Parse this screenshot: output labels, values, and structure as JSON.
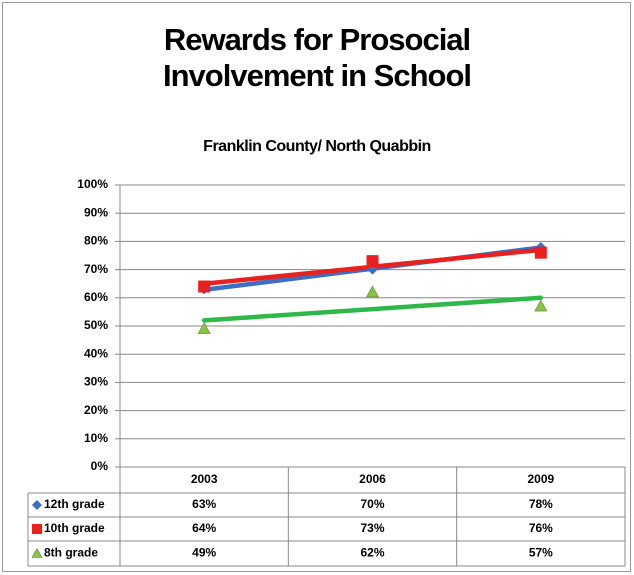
{
  "chart_data": {
    "type": "line",
    "title": "Rewards for Prosocial Involvement in School",
    "subtitle": "Franklin County/ North Quabbin",
    "categories": [
      "2003",
      "2006",
      "2009"
    ],
    "series": [
      {
        "name": "12th grade",
        "color": "#3b6fc6",
        "marker": "diamond",
        "values": [
          63,
          70,
          78
        ],
        "value_labels": [
          "63%",
          "70%",
          "78%"
        ]
      },
      {
        "name": "10th grade",
        "color": "#e8201e",
        "marker": "square",
        "values": [
          64,
          73,
          76
        ],
        "value_labels": [
          "64%",
          "73%",
          "76%"
        ]
      },
      {
        "name": "8th grade",
        "color": "#2eb84a",
        "marker": "triangle",
        "marker_color": "#8bc34a",
        "values": [
          49,
          62,
          57
        ],
        "value_labels": [
          "49%",
          "62%",
          "57%"
        ]
      }
    ],
    "trendline": "linear",
    "ylim": [
      0,
      100
    ],
    "yticks": [
      {
        "value": 0,
        "label": "0%"
      },
      {
        "value": 10,
        "label": "10%"
      },
      {
        "value": 20,
        "label": "20%"
      },
      {
        "value": 30,
        "label": "30%"
      },
      {
        "value": 40,
        "label": "40%"
      },
      {
        "value": 50,
        "label": "50%"
      },
      {
        "value": 60,
        "label": "60%"
      },
      {
        "value": 70,
        "label": "70%"
      },
      {
        "value": 80,
        "label": "80%"
      },
      {
        "value": 90,
        "label": "90%"
      },
      {
        "value": 100,
        "label": "100%"
      }
    ],
    "grid": true
  }
}
